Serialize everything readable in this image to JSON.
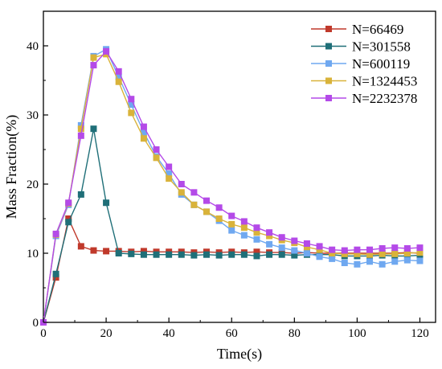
{
  "chart_data": {
    "type": "line",
    "xlabel": "Time(s)",
    "ylabel": "Mass Fraction(%)",
    "xlim": [
      0,
      125
    ],
    "ylim": [
      0,
      45
    ],
    "xticks": [
      0,
      20,
      40,
      60,
      80,
      100,
      120
    ],
    "yticks": [
      0,
      10,
      20,
      30,
      40
    ],
    "legend_position": "top-right",
    "grid": false,
    "x": [
      0,
      4,
      8,
      12,
      16,
      20,
      24,
      28,
      32,
      36,
      40,
      44,
      48,
      52,
      56,
      60,
      64,
      68,
      72,
      76,
      80,
      84,
      88,
      92,
      96,
      100,
      104,
      108,
      112,
      116,
      120
    ],
    "series": [
      {
        "name": "N=66469",
        "color": "#c0392b",
        "values": [
          0,
          6.5,
          15.0,
          11.0,
          10.4,
          10.3,
          10.3,
          10.2,
          10.3,
          10.2,
          10.2,
          10.2,
          10.1,
          10.2,
          10.1,
          10.2,
          10.1,
          10.2,
          10.1,
          10.1,
          10.0,
          10.1,
          10.0,
          10.0,
          10.0,
          10.0,
          10.0,
          10.0,
          10.0,
          10.1,
          10.0
        ]
      },
      {
        "name": "N=301558",
        "color": "#1f6f78",
        "values": [
          0,
          7.0,
          14.5,
          18.5,
          28.0,
          17.3,
          10.0,
          9.9,
          9.8,
          9.8,
          9.8,
          9.8,
          9.7,
          9.8,
          9.7,
          9.8,
          9.8,
          9.6,
          9.8,
          9.8,
          9.7,
          9.8,
          9.8,
          9.8,
          9.6,
          9.6,
          9.6,
          9.7,
          9.6,
          9.6,
          9.7
        ]
      },
      {
        "name": "N=600119",
        "color": "#6fa8f0",
        "values": [
          0,
          12.5,
          17.0,
          28.5,
          38.5,
          39.5,
          35.5,
          31.5,
          27.5,
          24.0,
          21.5,
          18.5,
          17.0,
          16.0,
          14.7,
          13.3,
          12.6,
          12.0,
          11.3,
          10.8,
          10.4,
          10.0,
          9.5,
          9.2,
          8.6,
          8.4,
          8.8,
          8.4,
          8.8,
          9.0,
          8.9
        ]
      },
      {
        "name": "N=1324453",
        "color": "#d9b33a",
        "values": [
          0,
          12.7,
          17.2,
          28.0,
          38.3,
          38.8,
          34.8,
          30.3,
          26.6,
          23.8,
          20.8,
          18.8,
          17.0,
          16.0,
          15.0,
          14.2,
          13.7,
          13.0,
          12.5,
          11.9,
          11.5,
          10.9,
          10.5,
          10.0,
          9.9,
          9.9,
          9.8,
          9.9,
          9.9,
          10.0,
          10.1
        ]
      },
      {
        "name": "N=2232378",
        "color": "#b44ae8",
        "values": [
          0,
          12.8,
          17.3,
          27.0,
          37.2,
          39.2,
          36.3,
          32.3,
          28.3,
          25.0,
          22.5,
          20.0,
          18.8,
          17.6,
          16.6,
          15.4,
          14.6,
          13.7,
          13.0,
          12.3,
          11.8,
          11.4,
          11.0,
          10.5,
          10.4,
          10.5,
          10.5,
          10.7,
          10.8,
          10.7,
          10.8
        ]
      }
    ]
  }
}
